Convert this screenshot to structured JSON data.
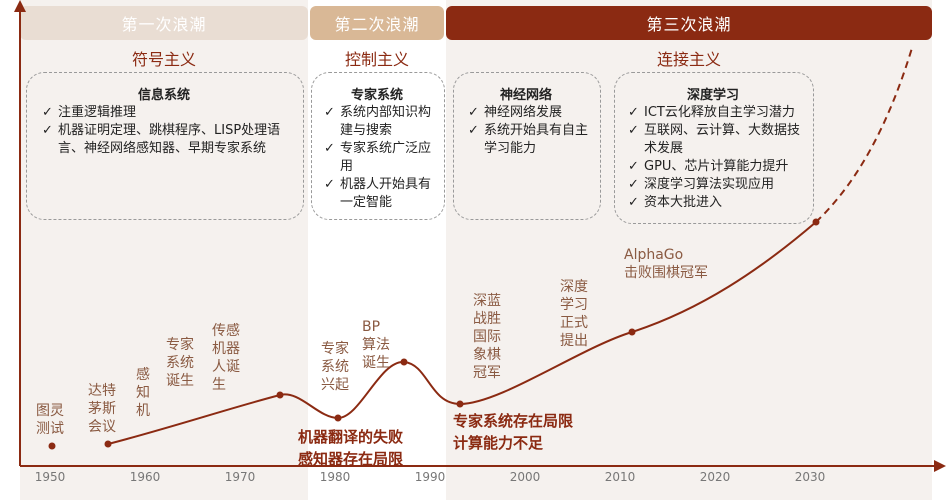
{
  "colors": {
    "wave1": "#e9ddd3",
    "wave2": "#d9b896",
    "wave3": "#8b2a12",
    "curve": "#8b2a12",
    "text_label": "#8a5a42",
    "panel_bg1": "#f5f1ee",
    "panel_bg3": "#f5f1ee"
  },
  "waves": [
    {
      "header": "第一次浪潮",
      "subtitle": "符号主义"
    },
    {
      "header": "第二次浪潮",
      "subtitle": "控制主义"
    },
    {
      "header": "第三次浪潮",
      "subtitle": "连接主义"
    }
  ],
  "boxes": [
    {
      "title": "信息系统",
      "items": [
        "注重逻辑推理",
        "机器证明定理、跳棋程序、LISP处理语言、神经网络感知器、早期专家系统"
      ]
    },
    {
      "title": "专家系统",
      "items": [
        "系统内部知识构建与搜索",
        "专家系统广泛应用",
        "机器人开始具有一定智能"
      ]
    },
    {
      "title": "神经网络",
      "items": [
        "神经网络发展",
        "系统开始具有自主学习能力"
      ]
    },
    {
      "title": "深度学习",
      "items": [
        "ICT云化释放自主学习潜力",
        "互联网、云计算、大数据技术发展",
        "GPU、芯片计算能力提升",
        "深度学习算法实现应用",
        "资本大批进入"
      ]
    }
  ],
  "milestones": [
    "图灵\n测试",
    "达特\n茅斯\n会议",
    "感\n知\n机",
    "专家\n系统\n诞生",
    "传感\n机器\n人诞\n生",
    "专家\n系统\n兴起",
    "BP\n算法\n诞生",
    "深蓝\n战胜\n国际\n象棋\n冠军",
    "深度\n学习\n正式\n提出",
    "AlphaGo\n击败围棋冠军"
  ],
  "setbacks": [
    "机器翻译的失败\n感知器存在局限",
    "专家系统存在局限\n计算能力不足"
  ],
  "x_axis": {
    "ticks": [
      "1950",
      "1960",
      "1970",
      "1980",
      "1990",
      "2000",
      "2010",
      "2020",
      "2030"
    ]
  },
  "icons": {
    "check": "✓"
  }
}
